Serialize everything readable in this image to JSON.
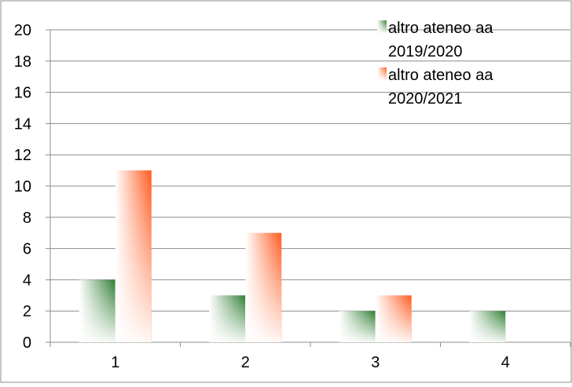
{
  "chart_data": {
    "type": "bar",
    "categories": [
      "1",
      "2",
      "3",
      "4"
    ],
    "series": [
      {
        "name": "altro ateneo aa 2019/2020",
        "legend_lines": [
          "altro ateneo aa",
          "2019/2020"
        ],
        "values": [
          4,
          3,
          2,
          2
        ],
        "color": "#2e7d32"
      },
      {
        "name": "altro ateneo aa 2020/2021",
        "legend_lines": [
          "altro ateneo aa",
          "2020/2021"
        ],
        "values": [
          11,
          7,
          3,
          0
        ],
        "color": "#ff5a1f"
      }
    ],
    "ylim": [
      0,
      20
    ],
    "yticks": [
      "0",
      "2",
      "4",
      "6",
      "8",
      "10",
      "12",
      "14",
      "16",
      "18",
      "20"
    ],
    "grid": true,
    "legend_position": "top-right",
    "title": "",
    "xlabel": "",
    "ylabel": ""
  }
}
